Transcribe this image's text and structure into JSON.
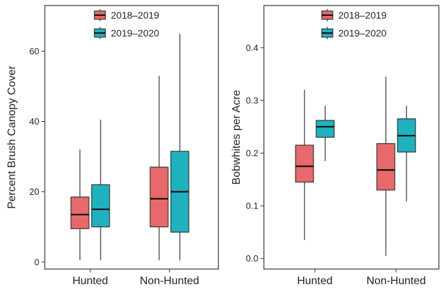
{
  "colors": {
    "s2018": "#E8696B",
    "s2019": "#1FB2BE"
  },
  "chart_data": [
    {
      "type": "box",
      "ylabel": "Percent Brush Canopy Cover",
      "xlabel": "",
      "ylim": [
        -2,
        73
      ],
      "yticks": [
        0,
        20,
        40,
        60
      ],
      "categories": [
        "Hunted",
        "Non-Hunted"
      ],
      "legend_position": "top",
      "grid": false,
      "series": [
        {
          "name": "2018–2019",
          "color_key": "s2018",
          "boxes": [
            {
              "min": 0.5,
              "q1": 9.5,
              "median": 13.5,
              "q3": 18.5,
              "max": 32
            },
            {
              "min": 0.5,
              "q1": 10,
              "median": 18,
              "q3": 27,
              "max": 53
            }
          ]
        },
        {
          "name": "2019–2020",
          "color_key": "s2019",
          "boxes": [
            {
              "min": 0.5,
              "q1": 10,
              "median": 15,
              "q3": 22,
              "max": 40.5
            },
            {
              "min": 0.5,
              "q1": 8.5,
              "median": 20,
              "q3": 31.5,
              "max": 65
            }
          ]
        }
      ]
    },
    {
      "type": "box",
      "ylabel": "Bobwhites per Acre",
      "xlabel": "",
      "ylim": [
        -0.02,
        0.48
      ],
      "yticks": [
        0.0,
        0.1,
        0.2,
        0.3,
        0.4
      ],
      "categories": [
        "Hunted",
        "Non-Hunted"
      ],
      "legend_position": "top",
      "grid": false,
      "series": [
        {
          "name": "2018–2019",
          "color_key": "s2018",
          "boxes": [
            {
              "min": 0.035,
              "q1": 0.145,
              "median": 0.175,
              "q3": 0.215,
              "max": 0.32
            },
            {
              "min": 0.005,
              "q1": 0.13,
              "median": 0.168,
              "q3": 0.218,
              "max": 0.345
            }
          ]
        },
        {
          "name": "2019–2020",
          "color_key": "s2019",
          "boxes": [
            {
              "min": 0.185,
              "q1": 0.23,
              "median": 0.25,
              "q3": 0.262,
              "max": 0.29
            },
            {
              "min": 0.108,
              "q1": 0.202,
              "median": 0.233,
              "q3": 0.265,
              "max": 0.29
            }
          ]
        }
      ]
    }
  ]
}
